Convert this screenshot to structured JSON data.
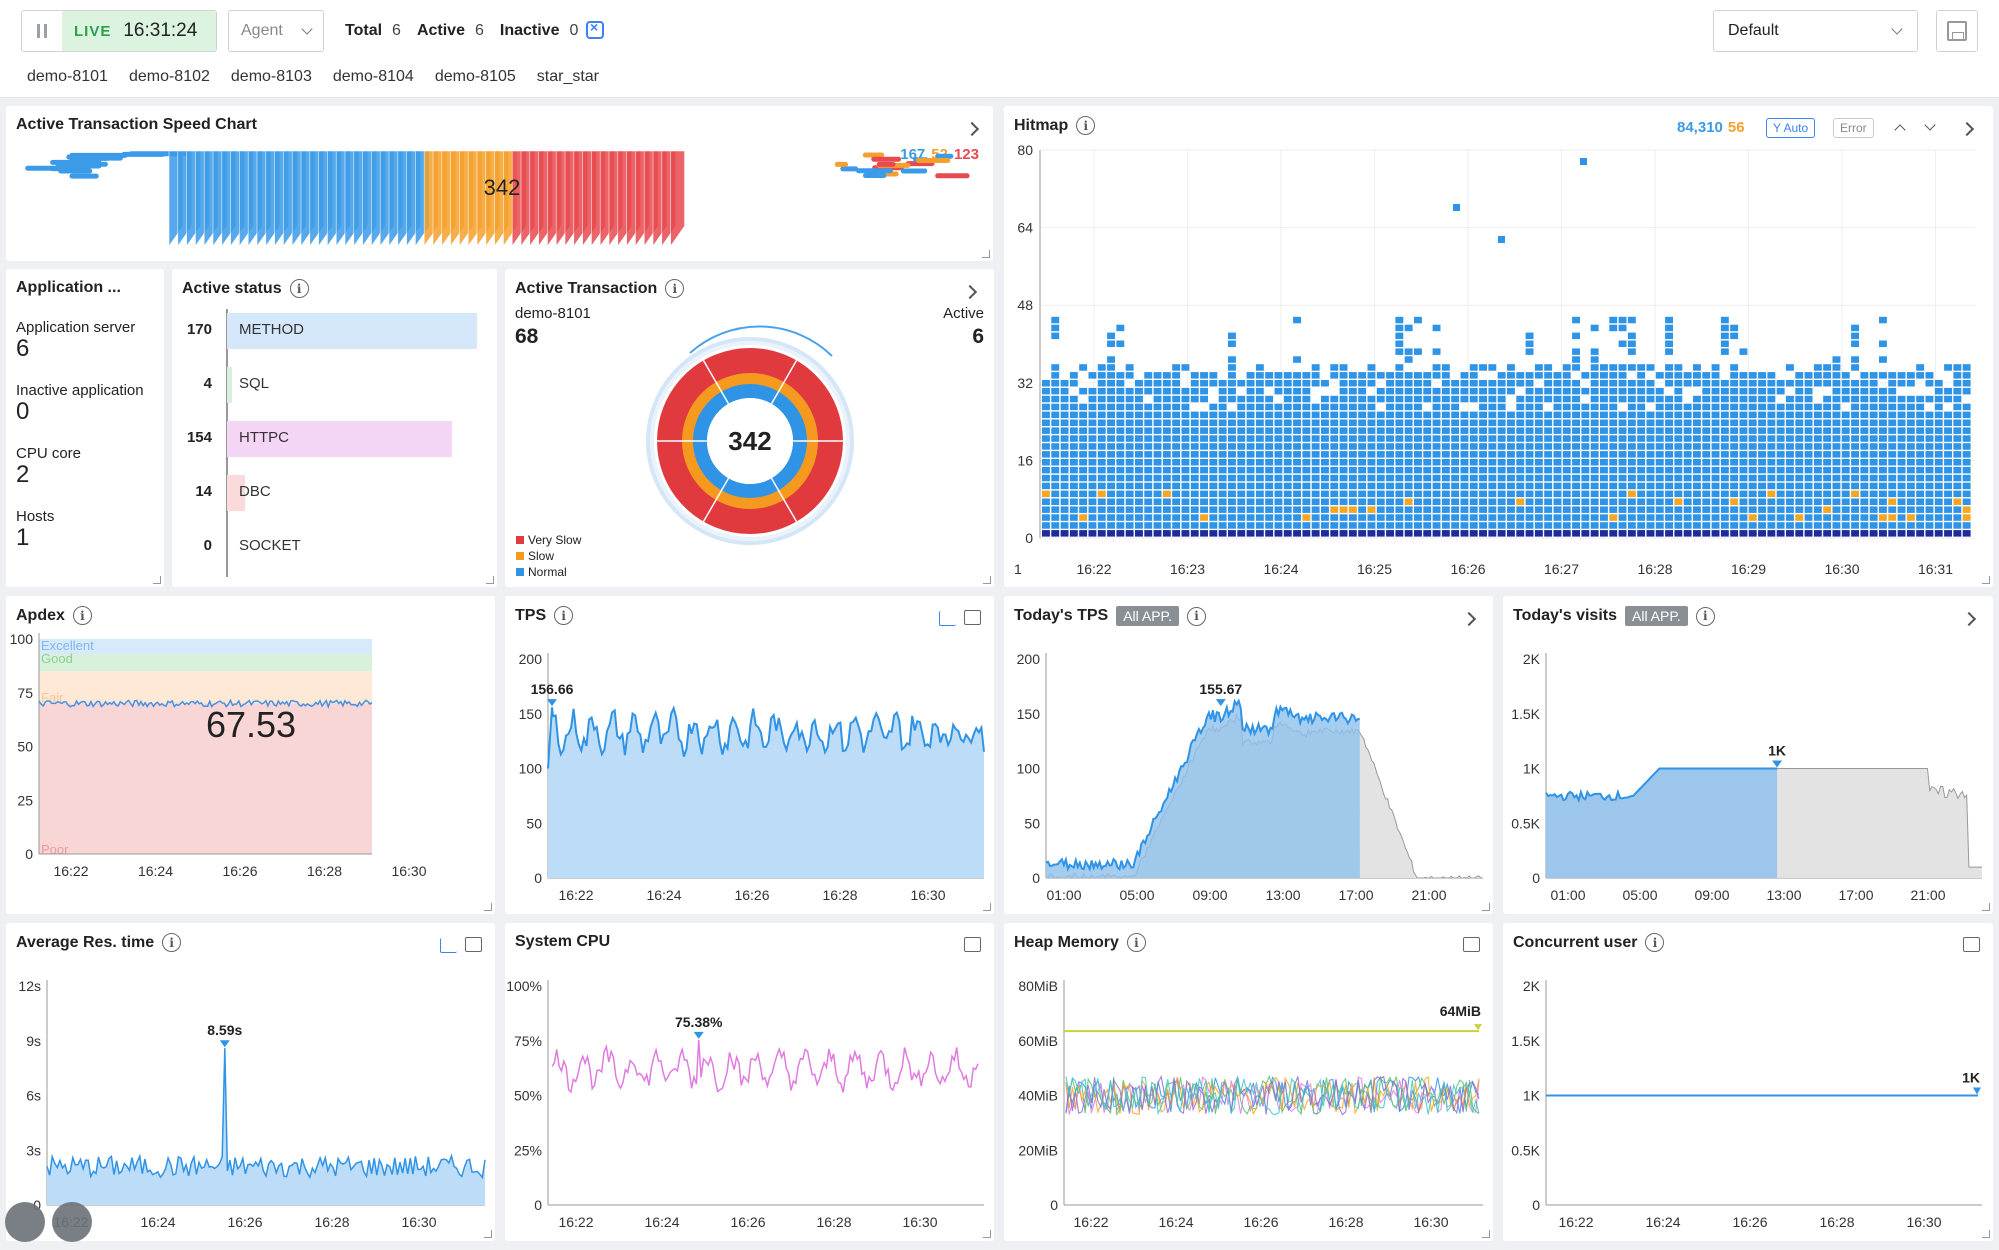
{
  "topbar": {
    "live_label": "LIVE",
    "time": "16:31:24",
    "agent_placeholder": "Agent",
    "total_label": "Total",
    "total_value": "6",
    "active_label": "Active",
    "active_value": "6",
    "inactive_label": "Inactive",
    "inactive_value": "0",
    "preset": "Default",
    "agents": [
      "demo-8101",
      "demo-8102",
      "demo-8103",
      "demo-8104",
      "demo-8105",
      "star_star"
    ]
  },
  "speed_chart": {
    "title": "Active Transaction Speed Chart",
    "center_value": "342",
    "count_normal": "167",
    "count_slow": "52",
    "count_very_slow": "123",
    "colors": {
      "normal": "#3c9be8",
      "slow": "#f5a02c",
      "very_slow": "#e84a4f"
    }
  },
  "hitmap": {
    "title": "Hitmap",
    "count_normal": "84,310",
    "count_error": "56",
    "y_auto": "Y Auto",
    "error": "Error",
    "y_ticks": [
      "80",
      "64",
      "48",
      "32",
      "16",
      "0"
    ],
    "x_start": "1",
    "x_ticks": [
      "16:22",
      "16:23",
      "16:24",
      "16:25",
      "16:26",
      "16:27",
      "16:28",
      "16:29",
      "16:30",
      "16:31"
    ]
  },
  "app_info": {
    "title": "Application ...",
    "items": [
      {
        "label": "Application server",
        "value": "6"
      },
      {
        "label": "Inactive application",
        "value": "0"
      },
      {
        "label": "CPU core",
        "value": "2"
      },
      {
        "label": "Hosts",
        "value": "1"
      }
    ]
  },
  "active_status": {
    "title": "Active status",
    "rows": [
      {
        "count": "170",
        "label": "METHOD",
        "fraction": 1.0,
        "color": "#d5e7fa"
      },
      {
        "count": "4",
        "label": "SQL",
        "fraction": 0.02,
        "color": "#d7f0dc"
      },
      {
        "count": "154",
        "label": "HTTPC",
        "fraction": 0.9,
        "color": "#f5d5f6"
      },
      {
        "count": "14",
        "label": "DBC",
        "fraction": 0.07,
        "color": "#fadadb"
      },
      {
        "count": "0",
        "label": "SOCKET",
        "fraction": 0,
        "color": "#eeeeee"
      }
    ]
  },
  "active_transaction": {
    "title": "Active Transaction",
    "agent": "demo-8101",
    "agent_value": "68",
    "active_label": "Active",
    "active_value": "6",
    "center": "342",
    "legend": [
      "Very Slow",
      "Slow",
      "Normal"
    ],
    "colors": {
      "very_slow": "#e03a3e",
      "slow": "#f59a1e",
      "normal": "#2f93e6"
    }
  },
  "apdex": {
    "title": "Apdex",
    "value": "67.53",
    "bands": [
      "Excellent",
      "Good",
      "Fair",
      "Poor"
    ],
    "y_ticks": [
      "100",
      "75",
      "50",
      "25",
      "0"
    ],
    "x_ticks": [
      "16:22",
      "16:24",
      "16:26",
      "16:28",
      "16:30"
    ]
  },
  "tps": {
    "title": "TPS",
    "peak_label": "156.66",
    "y_ticks": [
      "200",
      "150",
      "100",
      "50",
      "0"
    ],
    "x_ticks": [
      "16:22",
      "16:24",
      "16:26",
      "16:28",
      "16:30"
    ]
  },
  "today_tps": {
    "title": "Today's TPS",
    "badge": "All APP.",
    "peak_label": "155.67",
    "y_ticks": [
      "200",
      "150",
      "100",
      "50",
      "0"
    ],
    "x_ticks": [
      "01:00",
      "05:00",
      "09:00",
      "13:00",
      "17:00",
      "21:00"
    ]
  },
  "today_visits": {
    "title": "Today's visits",
    "badge": "All APP.",
    "peak_label": "1K",
    "y_ticks": [
      "2K",
      "1.5K",
      "1K",
      "0.5K",
      "0"
    ],
    "x_ticks": [
      "01:00",
      "05:00",
      "09:00",
      "13:00",
      "17:00",
      "21:00"
    ]
  },
  "avg_res": {
    "title": "Average Res. time",
    "peak_label": "8.59s",
    "y_ticks": [
      "12s",
      "9s",
      "6s",
      "3s",
      "0"
    ],
    "x_ticks": [
      "16:22",
      "16:24",
      "16:26",
      "16:28",
      "16:30"
    ]
  },
  "system_cpu": {
    "title": "System CPU",
    "peak_label": "75.38%",
    "y_ticks": [
      "100%",
      "75%",
      "50%",
      "25%",
      "0"
    ],
    "x_ticks": [
      "16:22",
      "16:24",
      "16:26",
      "16:28",
      "16:30"
    ]
  },
  "heap_memory": {
    "title": "Heap Memory",
    "max_label": "64MiB",
    "y_ticks": [
      "80MiB",
      "60MiB",
      "40MiB",
      "20MiB",
      "0"
    ],
    "x_ticks": [
      "16:22",
      "16:24",
      "16:26",
      "16:28",
      "16:30"
    ]
  },
  "concurrent_user": {
    "title": "Concurrent user",
    "value_label": "1K",
    "y_ticks": [
      "2K",
      "1.5K",
      "1K",
      "0.5K",
      "0"
    ],
    "x_ticks": [
      "16:22",
      "16:24",
      "16:26",
      "16:28",
      "16:30"
    ]
  },
  "chart_data": [
    {
      "type": "line",
      "title": "TPS",
      "ylim": [
        0,
        200
      ],
      "peak": 156.66,
      "baseline": 130
    },
    {
      "type": "area",
      "title": "Today's TPS",
      "ylim": [
        0,
        200
      ],
      "peak": 155.67
    },
    {
      "type": "area",
      "title": "Today's visits",
      "ylim": [
        0,
        2000
      ],
      "plateau": 1000
    },
    {
      "type": "line",
      "title": "Average Res. time",
      "ylim": [
        0,
        12
      ],
      "peak": 8.59
    },
    {
      "type": "line",
      "title": "System CPU",
      "ylim": [
        0,
        100
      ],
      "peak": 75.38
    },
    {
      "type": "line",
      "title": "Heap Memory",
      "ylim": [
        0,
        80
      ],
      "max": 64
    },
    {
      "type": "line",
      "title": "Concurrent user",
      "ylim": [
        0,
        2000
      ],
      "value": 1000
    },
    {
      "type": "area",
      "title": "Apdex",
      "ylim": [
        0,
        100
      ],
      "value": 67.53
    }
  ]
}
